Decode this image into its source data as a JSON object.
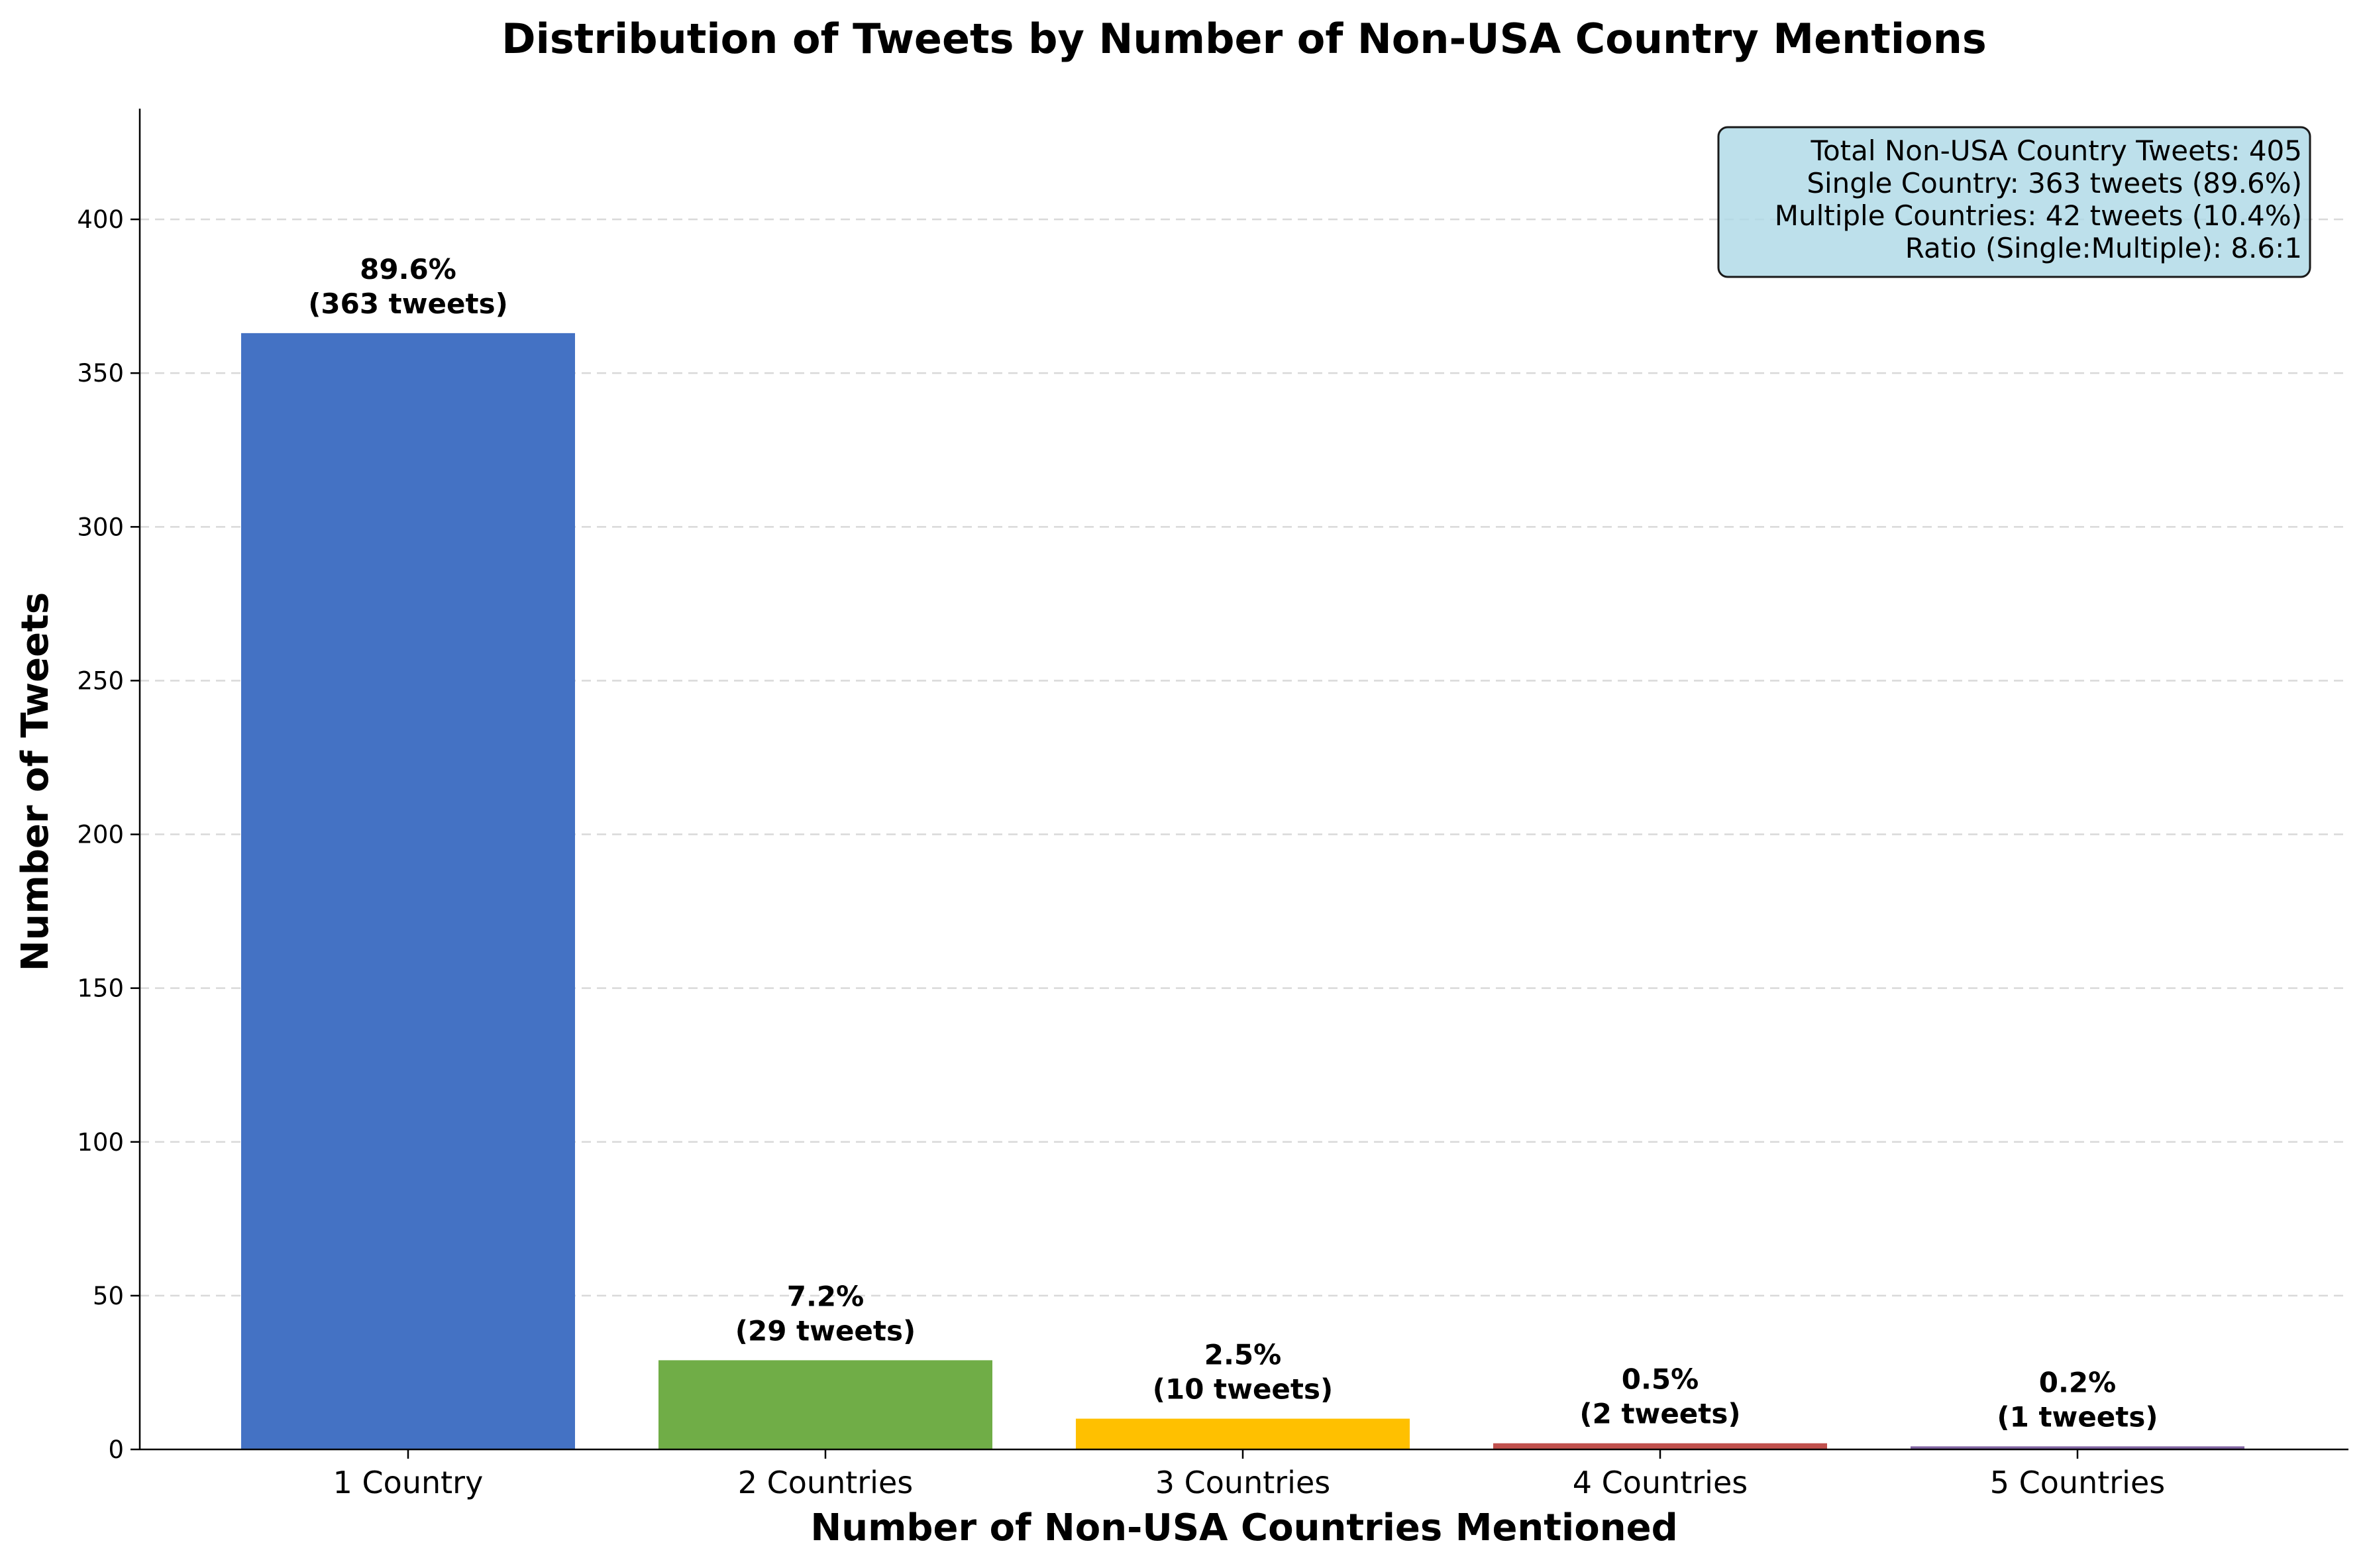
{
  "chart_data": {
    "type": "bar",
    "title": "Distribution of Tweets by Number of Non-USA Country Mentions",
    "xlabel": "Number of Non-USA Countries Mentioned",
    "ylabel": "Number of Tweets",
    "categories": [
      "1 Country",
      "2 Countries",
      "3 Countries",
      "4 Countries",
      "5 Countries"
    ],
    "values": [
      363,
      29,
      10,
      2,
      1
    ],
    "percent_labels": [
      "89.6%",
      "7.2%",
      "2.5%",
      "0.5%",
      "0.2%"
    ],
    "count_labels": [
      "(363 tweets)",
      "(29 tweets)",
      "(10 tweets)",
      "(2 tweets)",
      "(1 tweets)"
    ],
    "colors": [
      "#4472c4",
      "#70ad47",
      "#ffc000",
      "#c0504d",
      "#8064a2"
    ],
    "ylim": [
      0,
      436
    ],
    "yticks": [
      0,
      50,
      100,
      150,
      200,
      250,
      300,
      350,
      400
    ],
    "grid": "y-dashed",
    "stats_box": {
      "position": "top-right",
      "background": "#add8e6",
      "lines": [
        "Total Non-USA Country Tweets: 405",
        "Single Country: 363 tweets (89.6%)",
        "Multiple Countries: 42 tweets (10.4%)",
        "Ratio (Single:Multiple): 8.6:1"
      ]
    }
  }
}
